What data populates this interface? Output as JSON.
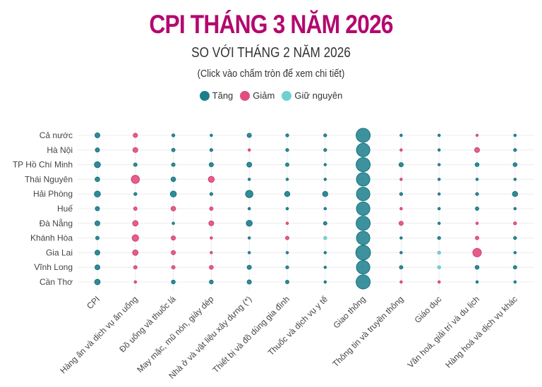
{
  "header": {
    "title": "CPI THÁNG 3 NĂM 2026",
    "subtitle": "SO VỚI THÁNG 2 NĂM 2026",
    "note": "(Click vào chấm tròn để xem chi tiết)"
  },
  "legend": [
    {
      "label": "Tăng",
      "color": "#1b7f8c"
    },
    {
      "label": "Giảm",
      "color": "#e24e7c"
    },
    {
      "label": "Giữ nguyên",
      "color": "#6fd0d2"
    }
  ],
  "chart_data": {
    "type": "scatter",
    "encoding": "bubble size = magnitude of change, color = direction (Tăng/Giảm/Giữ nguyên)",
    "grid": true,
    "legend_position": "top",
    "categories": [
      "CPI",
      "Hàng ăn và dịch vụ ăn uống",
      "Đồ uống và thuốc lá",
      "May mặc, mũ nón, giày dép",
      "Nhà ở và vật liệu xây dựng (*)",
      "Thiết bị và đồ dùng gia đình",
      "Thuốc và dịch vụ y tế",
      "Giao thông",
      "Thông tin và truyền thông",
      "Giáo dục",
      "Văn hoá, giải trí và du lịch",
      "Hàng hoá và dịch vụ khác"
    ],
    "regions": [
      "Cả nước",
      "Hà Nội",
      "TP Hồ Chí Minh",
      "Thái Nguyên",
      "Hải Phòng",
      "Huế",
      "Đà Nẵng",
      "Khánh Hòa",
      "Gia Lai",
      "Vĩnh Long",
      "Cần Thơ"
    ],
    "values": [
      [
        0.4,
        -0.3,
        0.15,
        0.1,
        0.3,
        0.15,
        0.15,
        3.3,
        0.1,
        0.1,
        -0.08,
        0.1
      ],
      [
        0.3,
        -0.4,
        0.2,
        0.15,
        -0.1,
        0.15,
        0.15,
        3.0,
        -0.1,
        0.1,
        -0.4,
        0.15
      ],
      [
        0.6,
        0.2,
        0.2,
        0.3,
        0.4,
        0.2,
        0.1,
        3.3,
        0.3,
        0.1,
        0.25,
        0.25
      ],
      [
        0.35,
        -1.1,
        0.35,
        -0.6,
        0.1,
        0.1,
        0.1,
        3.0,
        -0.1,
        0.1,
        0.1,
        0.1
      ],
      [
        0.6,
        0.15,
        0.6,
        0.15,
        0.9,
        0.45,
        0.45,
        3.0,
        0.15,
        0.1,
        0.15,
        0.45
      ],
      [
        0.3,
        -0.2,
        -0.35,
        -0.2,
        0.1,
        0.1,
        0.1,
        3.0,
        -0.1,
        0.1,
        0.2,
        0.1
      ],
      [
        0.4,
        -0.5,
        0.1,
        -0.4,
        0.6,
        -0.1,
        0.2,
        3.3,
        -0.3,
        0.1,
        -0.1,
        -0.15
      ],
      [
        0.2,
        -0.7,
        -0.3,
        -0.1,
        0.1,
        -0.2,
        0,
        3.0,
        0.1,
        0.15,
        -0.2,
        0.15
      ],
      [
        0.4,
        -0.5,
        -0.3,
        -0.1,
        0.1,
        0.1,
        0.1,
        3.6,
        0.1,
        0,
        -1.2,
        0.1
      ],
      [
        0.4,
        -0.2,
        -0.2,
        -0.25,
        0.3,
        0.15,
        0.1,
        3.0,
        0.2,
        0,
        0.25,
        0.2
      ],
      [
        0.5,
        -0.1,
        0.25,
        0.25,
        0.3,
        0.2,
        0.1,
        3.3,
        -0.1,
        -0.1,
        0.1,
        0.1
      ]
    ]
  }
}
